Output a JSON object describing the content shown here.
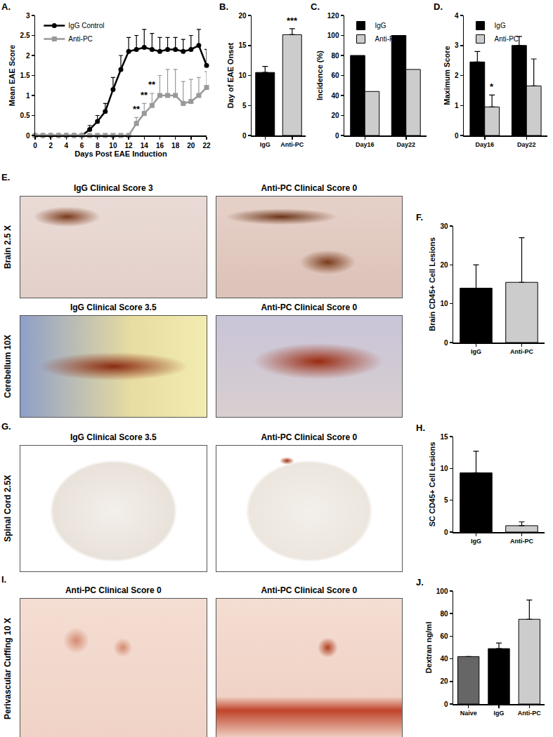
{
  "chart_data": [
    {
      "panel": "A.",
      "type": "line",
      "x": [
        0,
        1,
        2,
        3,
        4,
        5,
        6,
        7,
        8,
        9,
        10,
        11,
        12,
        13,
        14,
        15,
        16,
        17,
        18,
        19,
        20,
        21,
        22
      ],
      "xlim": [
        0,
        22
      ],
      "xticks": [
        0,
        2,
        4,
        6,
        8,
        10,
        12,
        14,
        16,
        18,
        20,
        22
      ],
      "ylim": [
        0,
        3
      ],
      "yticks": [
        0,
        0.5,
        1,
        1.5,
        2,
        2.5,
        3
      ],
      "x_label": "Days Post EAE Induction",
      "y_label": "Mean EAE Score",
      "grid": false,
      "legend": "top left",
      "series": [
        {
          "name": "IgG Control",
          "color": "#000000",
          "marker": "circle",
          "values": [
            0,
            0,
            0,
            0,
            0,
            0,
            0,
            0.15,
            0.35,
            0.6,
            1.15,
            1.65,
            2.1,
            2.15,
            2.2,
            2.15,
            2.1,
            2.15,
            2.15,
            2.1,
            2.15,
            2.25,
            1.75
          ],
          "errors": [
            0,
            0,
            0,
            0,
            0,
            0,
            0,
            0.1,
            0.15,
            0.2,
            0.3,
            0.35,
            0.35,
            0.35,
            0.45,
            0.4,
            0.35,
            0.3,
            0.3,
            0.3,
            0.35,
            0.4,
            0.4
          ]
        },
        {
          "name": "Anti-PC",
          "color": "#999999",
          "marker": "square",
          "values": [
            0,
            0,
            0,
            0,
            0,
            0,
            0,
            0,
            0,
            0,
            0,
            0,
            0,
            0.3,
            0.55,
            0.75,
            1.0,
            1.0,
            1.0,
            0.8,
            0.85,
            1.0,
            1.2
          ],
          "errors": [
            0,
            0,
            0,
            0,
            0,
            0,
            0,
            0,
            0,
            0,
            0,
            0,
            0,
            0.15,
            0.25,
            0.3,
            0.5,
            0.65,
            0.65,
            0.55,
            0.55,
            0.45,
            0.4
          ]
        }
      ],
      "annotations": [
        {
          "x": 13,
          "y": 0.5,
          "text": "**"
        },
        {
          "x": 14,
          "y": 0.85,
          "text": "**"
        },
        {
          "x": 15,
          "y": 1.1,
          "text": "**"
        }
      ]
    },
    {
      "panel": "B.",
      "type": "bar",
      "categories": [
        "IgG",
        "Anti-PC"
      ],
      "values": [
        10.5,
        16.8
      ],
      "errors": [
        1.0,
        1.0
      ],
      "colors": [
        "#000000",
        "#cccccc"
      ],
      "ylim": [
        0,
        20
      ],
      "yticks": [
        0,
        5,
        10,
        15,
        20
      ],
      "y_label": "Day of EAE Onset",
      "grid": false,
      "annotations": [
        {
          "category": "Anti-PC",
          "y": 18.0,
          "text": "***"
        }
      ]
    },
    {
      "panel": "C.",
      "type": "bar",
      "categories": [
        "Day16",
        "Day22"
      ],
      "ylim": [
        0,
        120
      ],
      "yticks": [
        0,
        20,
        40,
        60,
        80,
        100,
        120
      ],
      "y_label": "Incidence (%)",
      "grid": false,
      "legend": "top left",
      "series": [
        {
          "name": "IgG",
          "color": "#000000",
          "values": [
            80,
            100
          ]
        },
        {
          "name": "Anti-PC",
          "color": "#cccccc",
          "values": [
            44,
            66
          ]
        }
      ]
    },
    {
      "panel": "D.",
      "type": "bar",
      "categories": [
        "Day16",
        "Day22"
      ],
      "ylim": [
        0,
        4
      ],
      "yticks": [
        0,
        1,
        2,
        3,
        4
      ],
      "y_label": "Maximum Score",
      "grid": false,
      "legend": "top left",
      "series": [
        {
          "name": "IgG",
          "color": "#000000",
          "values": [
            2.45,
            3.0
          ],
          "errors": [
            0.35,
            0.3
          ]
        },
        {
          "name": "Anti-PC",
          "color": "#cccccc",
          "values": [
            0.95,
            1.65
          ],
          "errors": [
            0.4,
            0.9
          ]
        }
      ],
      "annotations": [
        {
          "category": "Day16",
          "series": "Anti-PC",
          "y": 1.4,
          "text": "*"
        }
      ]
    },
    {
      "panel": "F.",
      "type": "bar",
      "categories": [
        "IgG",
        "Anti-PC"
      ],
      "values": [
        14,
        15.5
      ],
      "errors": [
        6,
        11.5
      ],
      "colors": [
        "#000000",
        "#cccccc"
      ],
      "ylim": [
        0,
        30
      ],
      "yticks": [
        0,
        10,
        20,
        30
      ],
      "y_label": "Brain CD45+ Cell Lesions",
      "grid": false
    },
    {
      "panel": "H.",
      "type": "bar",
      "categories": [
        "IgG",
        "Anti-PC"
      ],
      "values": [
        9.3,
        1.0
      ],
      "errors": [
        3.4,
        0.6
      ],
      "colors": [
        "#000000",
        "#cccccc"
      ],
      "ylim": [
        0,
        15
      ],
      "yticks": [
        0,
        5,
        10,
        15
      ],
      "y_label": "SC CD45+ Cell Lesions",
      "grid": false
    },
    {
      "panel": "J.",
      "type": "bar",
      "categories": [
        "Naive",
        "IgG",
        "Anti-PC"
      ],
      "values": [
        42,
        49,
        75
      ],
      "errors": [
        null,
        5,
        17
      ],
      "colors": [
        "#666666",
        "#000000",
        "#cccccc"
      ],
      "ylim": [
        0,
        100
      ],
      "yticks": [
        0,
        20,
        40,
        60,
        80,
        100
      ],
      "y_label": "Dextran ng/ml",
      "grid": false
    }
  ],
  "image_panels": [
    {
      "panel": "E.",
      "rows": [
        {
          "label": "Brain 2.5 X",
          "images": [
            "IgG Clinical Score 3",
            "Anti-PC Clinical Score 0"
          ]
        },
        {
          "label": "Cerebellum 10X",
          "images": [
            "IgG Clinical Score 3.5",
            "Anti-PC Clinical Score 0"
          ]
        }
      ]
    },
    {
      "panel": "G.",
      "rows": [
        {
          "label": "Spinal Cord 2.5X",
          "images": [
            "IgG Clinical Score 3.5",
            "Anti-PC Clinical Score 0"
          ]
        }
      ]
    },
    {
      "panel": "I.",
      "rows": [
        {
          "label": "Perivascular Cuffing 10 X",
          "images": [
            "Anti-PC Clinical Score 0",
            "Anti-PC Clinical Score 0"
          ]
        }
      ]
    }
  ]
}
